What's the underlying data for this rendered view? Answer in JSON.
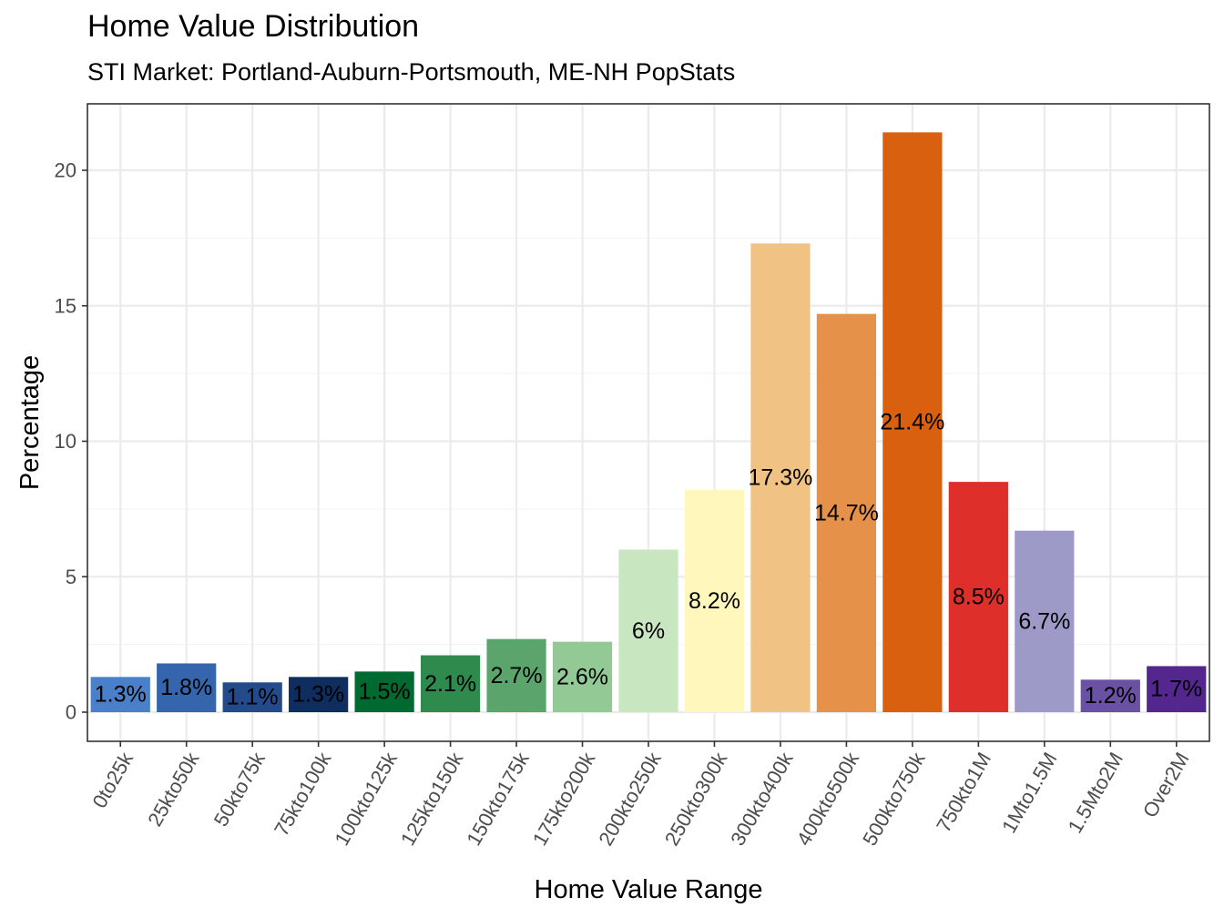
{
  "chart_data": {
    "type": "bar",
    "title": "Home Value Distribution",
    "subtitle": "STI Market: Portland-Auburn-Portsmouth, ME-NH PopStats",
    "xlabel": "Home Value Range",
    "ylabel": "Percentage",
    "ylim": [
      -2.2,
      22.4
    ],
    "yticks": [
      0,
      5,
      10,
      15,
      20
    ],
    "grid": true,
    "legend": "none",
    "categories": [
      "0to25k",
      "25kto50k",
      "50kto75k",
      "75kto100k",
      "100kto125k",
      "125kto150k",
      "150kto175k",
      "175kto200k",
      "200kto250k",
      "250kto300k",
      "300kto400k",
      "400kto500k",
      "500kto750k",
      "750kto1M",
      "1Mto1.5M",
      "1.5Mto2M",
      "Over2M"
    ],
    "values": [
      1.3,
      1.8,
      1.1,
      1.3,
      1.5,
      2.1,
      2.7,
      2.6,
      6,
      8.2,
      17.3,
      14.7,
      21.4,
      8.5,
      6.7,
      1.2,
      1.7
    ],
    "labels": [
      "1.3%",
      "1.8%",
      "1.1%",
      "1.3%",
      "1.5%",
      "2.1%",
      "2.7%",
      "2.6%",
      "6%",
      "8.2%",
      "17.3%",
      "14.7%",
      "21.4%",
      "8.5%",
      "6.7%",
      "1.2%",
      "1.7%"
    ],
    "colors": [
      "#4a80c9",
      "#3465ad",
      "#234a8a",
      "#0f2d5e",
      "#006a30",
      "#2f8a4e",
      "#5ba56d",
      "#93c994",
      "#c8e6c0",
      "#fff7bc",
      "#f0c384",
      "#e59149",
      "#d9600f",
      "#df2f2a",
      "#9e9ac8",
      "#6a51a3",
      "#54278f"
    ]
  }
}
